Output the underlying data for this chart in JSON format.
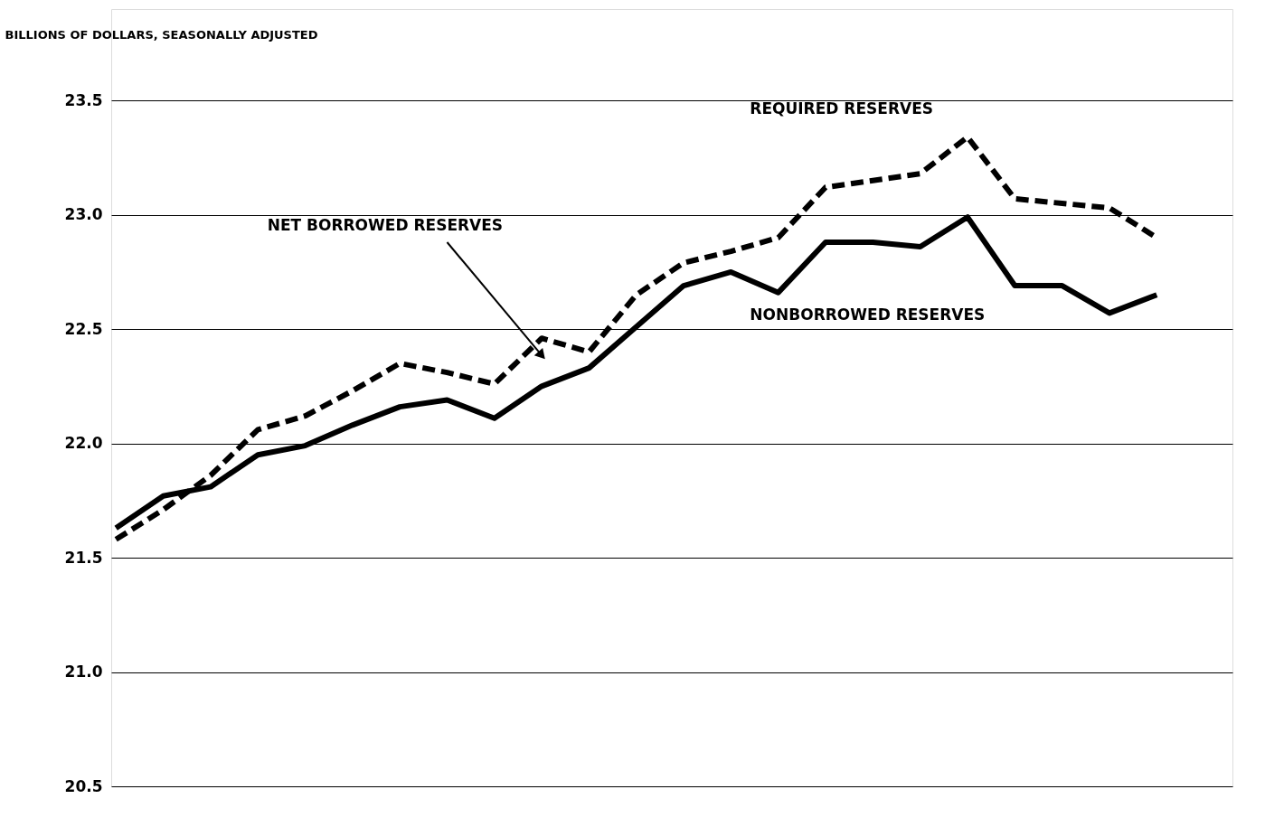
{
  "chart_data": {
    "type": "line",
    "ylabel": "BILLIONS OF DOLLARS, SEASONALLY ADJUSTED",
    "categories": [
      null,
      null,
      null,
      null,
      null,
      null,
      null,
      null,
      null,
      null,
      null,
      null,
      null,
      null,
      null,
      null,
      null,
      null,
      null,
      null,
      null,
      null,
      null
    ],
    "series": [
      {
        "name": "REQUIRED RESERVES",
        "color": "#000000",
        "line_style": "dashed",
        "values": [
          21.58,
          21.71,
          21.86,
          22.06,
          22.12,
          22.23,
          22.35,
          22.31,
          22.26,
          22.46,
          22.4,
          22.65,
          22.79,
          22.84,
          22.9,
          23.12,
          23.15,
          23.18,
          23.34,
          23.07,
          23.05,
          23.03,
          22.9
        ]
      },
      {
        "name": "NONBORROWED RESERVES",
        "color": "#000000",
        "line_style": "solid",
        "values": [
          21.63,
          21.77,
          21.81,
          21.95,
          21.99,
          22.08,
          22.16,
          22.19,
          22.11,
          22.25,
          22.33,
          22.51,
          22.69,
          22.75,
          22.66,
          22.88,
          22.88,
          22.86,
          22.99,
          22.69,
          22.69,
          22.57,
          22.65
        ]
      }
    ],
    "annotations": [
      "NET BORROWED RESERVES"
    ],
    "ylim": [
      20.5,
      23.9
    ],
    "yticks": [
      {
        "value": 20.5,
        "label": "20.5"
      },
      {
        "value": 21,
        "label": "21.0"
      },
      {
        "value": 21.5,
        "label": "21.5"
      },
      {
        "value": 22,
        "label": "22.0"
      },
      {
        "value": 22.5,
        "label": "22.5"
      },
      {
        "value": 23,
        "label": "23.0"
      },
      {
        "value": 23.5,
        "label": "23.5"
      }
    ],
    "grid": "y",
    "marker": "none",
    "legend": false,
    "tick_labels": "y"
  }
}
